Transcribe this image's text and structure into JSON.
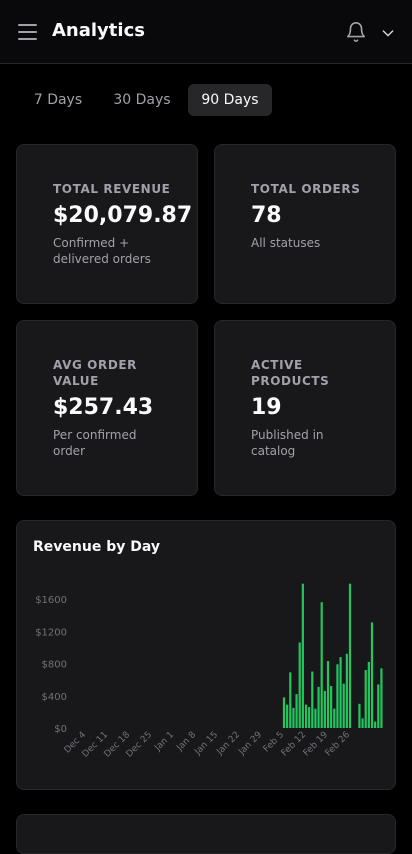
{
  "header": {
    "title": "Analytics",
    "menu_icon": "hamburger-menu-icon",
    "bell_icon": "bell-icon",
    "dropdown_icon": "chevron-down-icon"
  },
  "tabs": [
    {
      "label": "7 Days",
      "active": false
    },
    {
      "label": "30 Days",
      "active": false
    },
    {
      "label": "90 Days",
      "active": true
    }
  ],
  "stats": [
    {
      "label": "TOTAL REVENUE",
      "value": "$20,079.87",
      "desc": "Confirmed + delivered orders"
    },
    {
      "label": "TOTAL ORDERS",
      "value": "78",
      "desc": "All statuses"
    },
    {
      "label": "AVG ORDER VALUE",
      "value": "$257.43",
      "desc": "Per confirmed order"
    },
    {
      "label": "ACTIVE PRODUCTS",
      "value": "19",
      "desc": "Published in catalog"
    }
  ],
  "chart_data": {
    "type": "bar",
    "title": "Revenue by Day",
    "xlabel": "",
    "ylabel": "",
    "ylim": [
      0,
      2000
    ],
    "y_ticks": [
      "$0",
      "$400",
      "$800",
      "$1200",
      "$1600"
    ],
    "y_tick_values": [
      0,
      400,
      800,
      1200,
      1600
    ],
    "x_tick_labels": [
      "Dec 4",
      "Dec 11",
      "Dec 18",
      "Dec 25",
      "Jan 1",
      "Jan 8",
      "Jan 15",
      "Jan 22",
      "Jan 29",
      "Feb 5",
      "Feb 12",
      "Feb 19",
      "Feb 26"
    ],
    "start_date": "2025-12-01",
    "bar_color": "#22c55e",
    "grid": false,
    "values": [
      0,
      0,
      0,
      0,
      0,
      0,
      0,
      0,
      0,
      0,
      0,
      0,
      0,
      0,
      0,
      0,
      0,
      0,
      0,
      0,
      0,
      0,
      0,
      0,
      0,
      0,
      0,
      0,
      0,
      0,
      0,
      0,
      0,
      0,
      0,
      0,
      0,
      0,
      0,
      0,
      0,
      0,
      0,
      0,
      0,
      0,
      0,
      0,
      0,
      0,
      0,
      0,
      0,
      0,
      0,
      0,
      0,
      0,
      0,
      0,
      0,
      0,
      0,
      0,
      0,
      0,
      380,
      290,
      690,
      250,
      420,
      1060,
      1790,
      290,
      260,
      700,
      240,
      510,
      1560,
      460,
      830,
      520,
      240,
      790,
      880,
      550,
      920,
      1790,
      0,
      0,
      300,
      120,
      720,
      820,
      1310,
      80,
      540,
      740
    ]
  }
}
